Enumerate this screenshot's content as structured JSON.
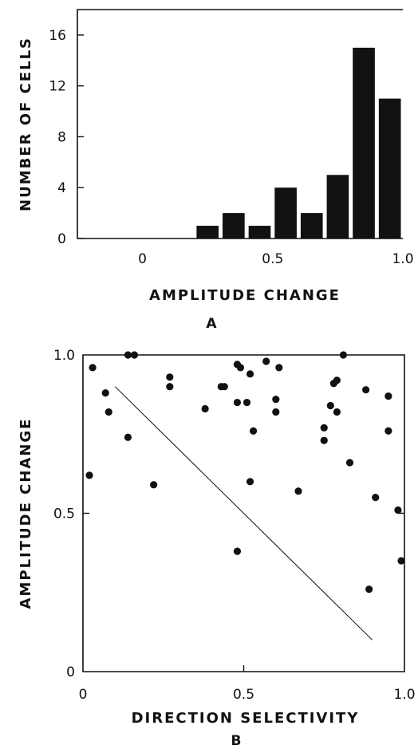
{
  "chart_data": [
    {
      "panel": "A",
      "type": "bar",
      "xlabel": "AMPLITUDE CHANGE",
      "ylabel": "NUMBER OF CELLS",
      "xlim": [
        -0.25,
        1.0
      ],
      "ylim": [
        0,
        18
      ],
      "xticks": [
        "0",
        "0.5",
        "1.0"
      ],
      "yticks": [
        "0",
        "4",
        "8",
        "12",
        "16"
      ],
      "bins": [
        {
          "x0": 0.2,
          "x1": 0.3,
          "value": 1
        },
        {
          "x0": 0.3,
          "x1": 0.4,
          "value": 2
        },
        {
          "x0": 0.4,
          "x1": 0.5,
          "value": 1
        },
        {
          "x0": 0.5,
          "x1": 0.6,
          "value": 4
        },
        {
          "x0": 0.6,
          "x1": 0.7,
          "value": 2
        },
        {
          "x0": 0.7,
          "x1": 0.8,
          "value": 5
        },
        {
          "x0": 0.8,
          "x1": 0.9,
          "value": 15
        },
        {
          "x0": 0.9,
          "x1": 1.0,
          "value": 11
        }
      ],
      "bar_color": "#111111"
    },
    {
      "panel": "B",
      "type": "scatter",
      "xlabel": "DIRECTION SELECTIVITY",
      "ylabel": "AMPLITUDE CHANGE",
      "xlim": [
        0,
        1.0
      ],
      "ylim": [
        0,
        1.0
      ],
      "xticks": [
        "0",
        "0.5",
        "1.0"
      ],
      "yticks": [
        "0",
        "0.5",
        "1.0"
      ],
      "points": [
        {
          "x": 0.02,
          "y": 0.62
        },
        {
          "x": 0.03,
          "y": 0.96
        },
        {
          "x": 0.07,
          "y": 0.88
        },
        {
          "x": 0.08,
          "y": 0.82
        },
        {
          "x": 0.14,
          "y": 1.0
        },
        {
          "x": 0.16,
          "y": 1.0
        },
        {
          "x": 0.14,
          "y": 0.74
        },
        {
          "x": 0.22,
          "y": 0.59
        },
        {
          "x": 0.27,
          "y": 0.93
        },
        {
          "x": 0.27,
          "y": 0.9
        },
        {
          "x": 0.38,
          "y": 0.83
        },
        {
          "x": 0.43,
          "y": 0.9
        },
        {
          "x": 0.44,
          "y": 0.9
        },
        {
          "x": 0.48,
          "y": 0.97
        },
        {
          "x": 0.49,
          "y": 0.96
        },
        {
          "x": 0.48,
          "y": 0.85
        },
        {
          "x": 0.51,
          "y": 0.85
        },
        {
          "x": 0.52,
          "y": 0.94
        },
        {
          "x": 0.53,
          "y": 0.76
        },
        {
          "x": 0.52,
          "y": 0.6
        },
        {
          "x": 0.48,
          "y": 0.38
        },
        {
          "x": 0.57,
          "y": 0.98
        },
        {
          "x": 0.61,
          "y": 0.96
        },
        {
          "x": 0.6,
          "y": 0.86
        },
        {
          "x": 0.6,
          "y": 0.82
        },
        {
          "x": 0.67,
          "y": 0.57
        },
        {
          "x": 0.75,
          "y": 0.77
        },
        {
          "x": 0.75,
          "y": 0.73
        },
        {
          "x": 0.77,
          "y": 0.84
        },
        {
          "x": 0.78,
          "y": 0.91
        },
        {
          "x": 0.79,
          "y": 0.92
        },
        {
          "x": 0.79,
          "y": 0.82
        },
        {
          "x": 0.81,
          "y": 1.0
        },
        {
          "x": 0.83,
          "y": 0.66
        },
        {
          "x": 0.88,
          "y": 0.89
        },
        {
          "x": 0.89,
          "y": 0.26
        },
        {
          "x": 0.91,
          "y": 0.55
        },
        {
          "x": 0.95,
          "y": 0.87
        },
        {
          "x": 0.95,
          "y": 0.76
        },
        {
          "x": 0.98,
          "y": 0.51
        },
        {
          "x": 0.99,
          "y": 0.35
        }
      ],
      "line": {
        "x": [
          0.1,
          0.9
        ],
        "y": [
          0.9,
          0.1
        ]
      }
    }
  ]
}
